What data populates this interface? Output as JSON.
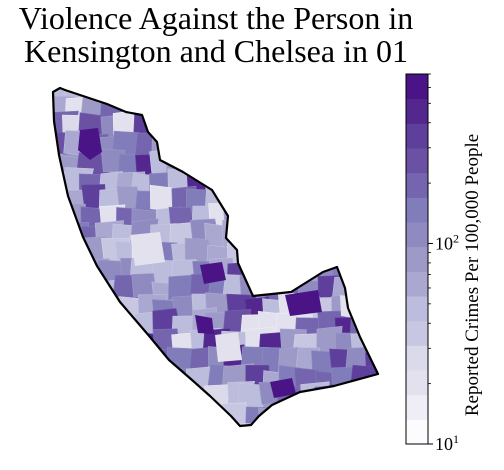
{
  "chart_data": {
    "type": "heatmap",
    "map": "choropleth of Kensington and Chelsea wards",
    "title_lines": [
      "Violence Against the Person in",
      "Kensington and Chelsea in 01"
    ],
    "colorbar": {
      "label": "Reported Crimes Per 100,000 People",
      "scale": "log",
      "range": [
        10,
        700
      ],
      "ticks": [
        {
          "value": 10,
          "base": "10",
          "exp": "1"
        },
        {
          "value": 100,
          "base": "10",
          "exp": "2"
        }
      ],
      "colors": [
        "#fcfbfd",
        "#efedf5",
        "#e3e1ee",
        "#dadaeb",
        "#c8c7e2",
        "#bcbddc",
        "#aaa8d1",
        "#9e9ac8",
        "#8f8bc1",
        "#807dba",
        "#7465ae",
        "#6a51a3",
        "#5e3f9c",
        "#54278f",
        "#4a1486"
      ]
    }
  }
}
